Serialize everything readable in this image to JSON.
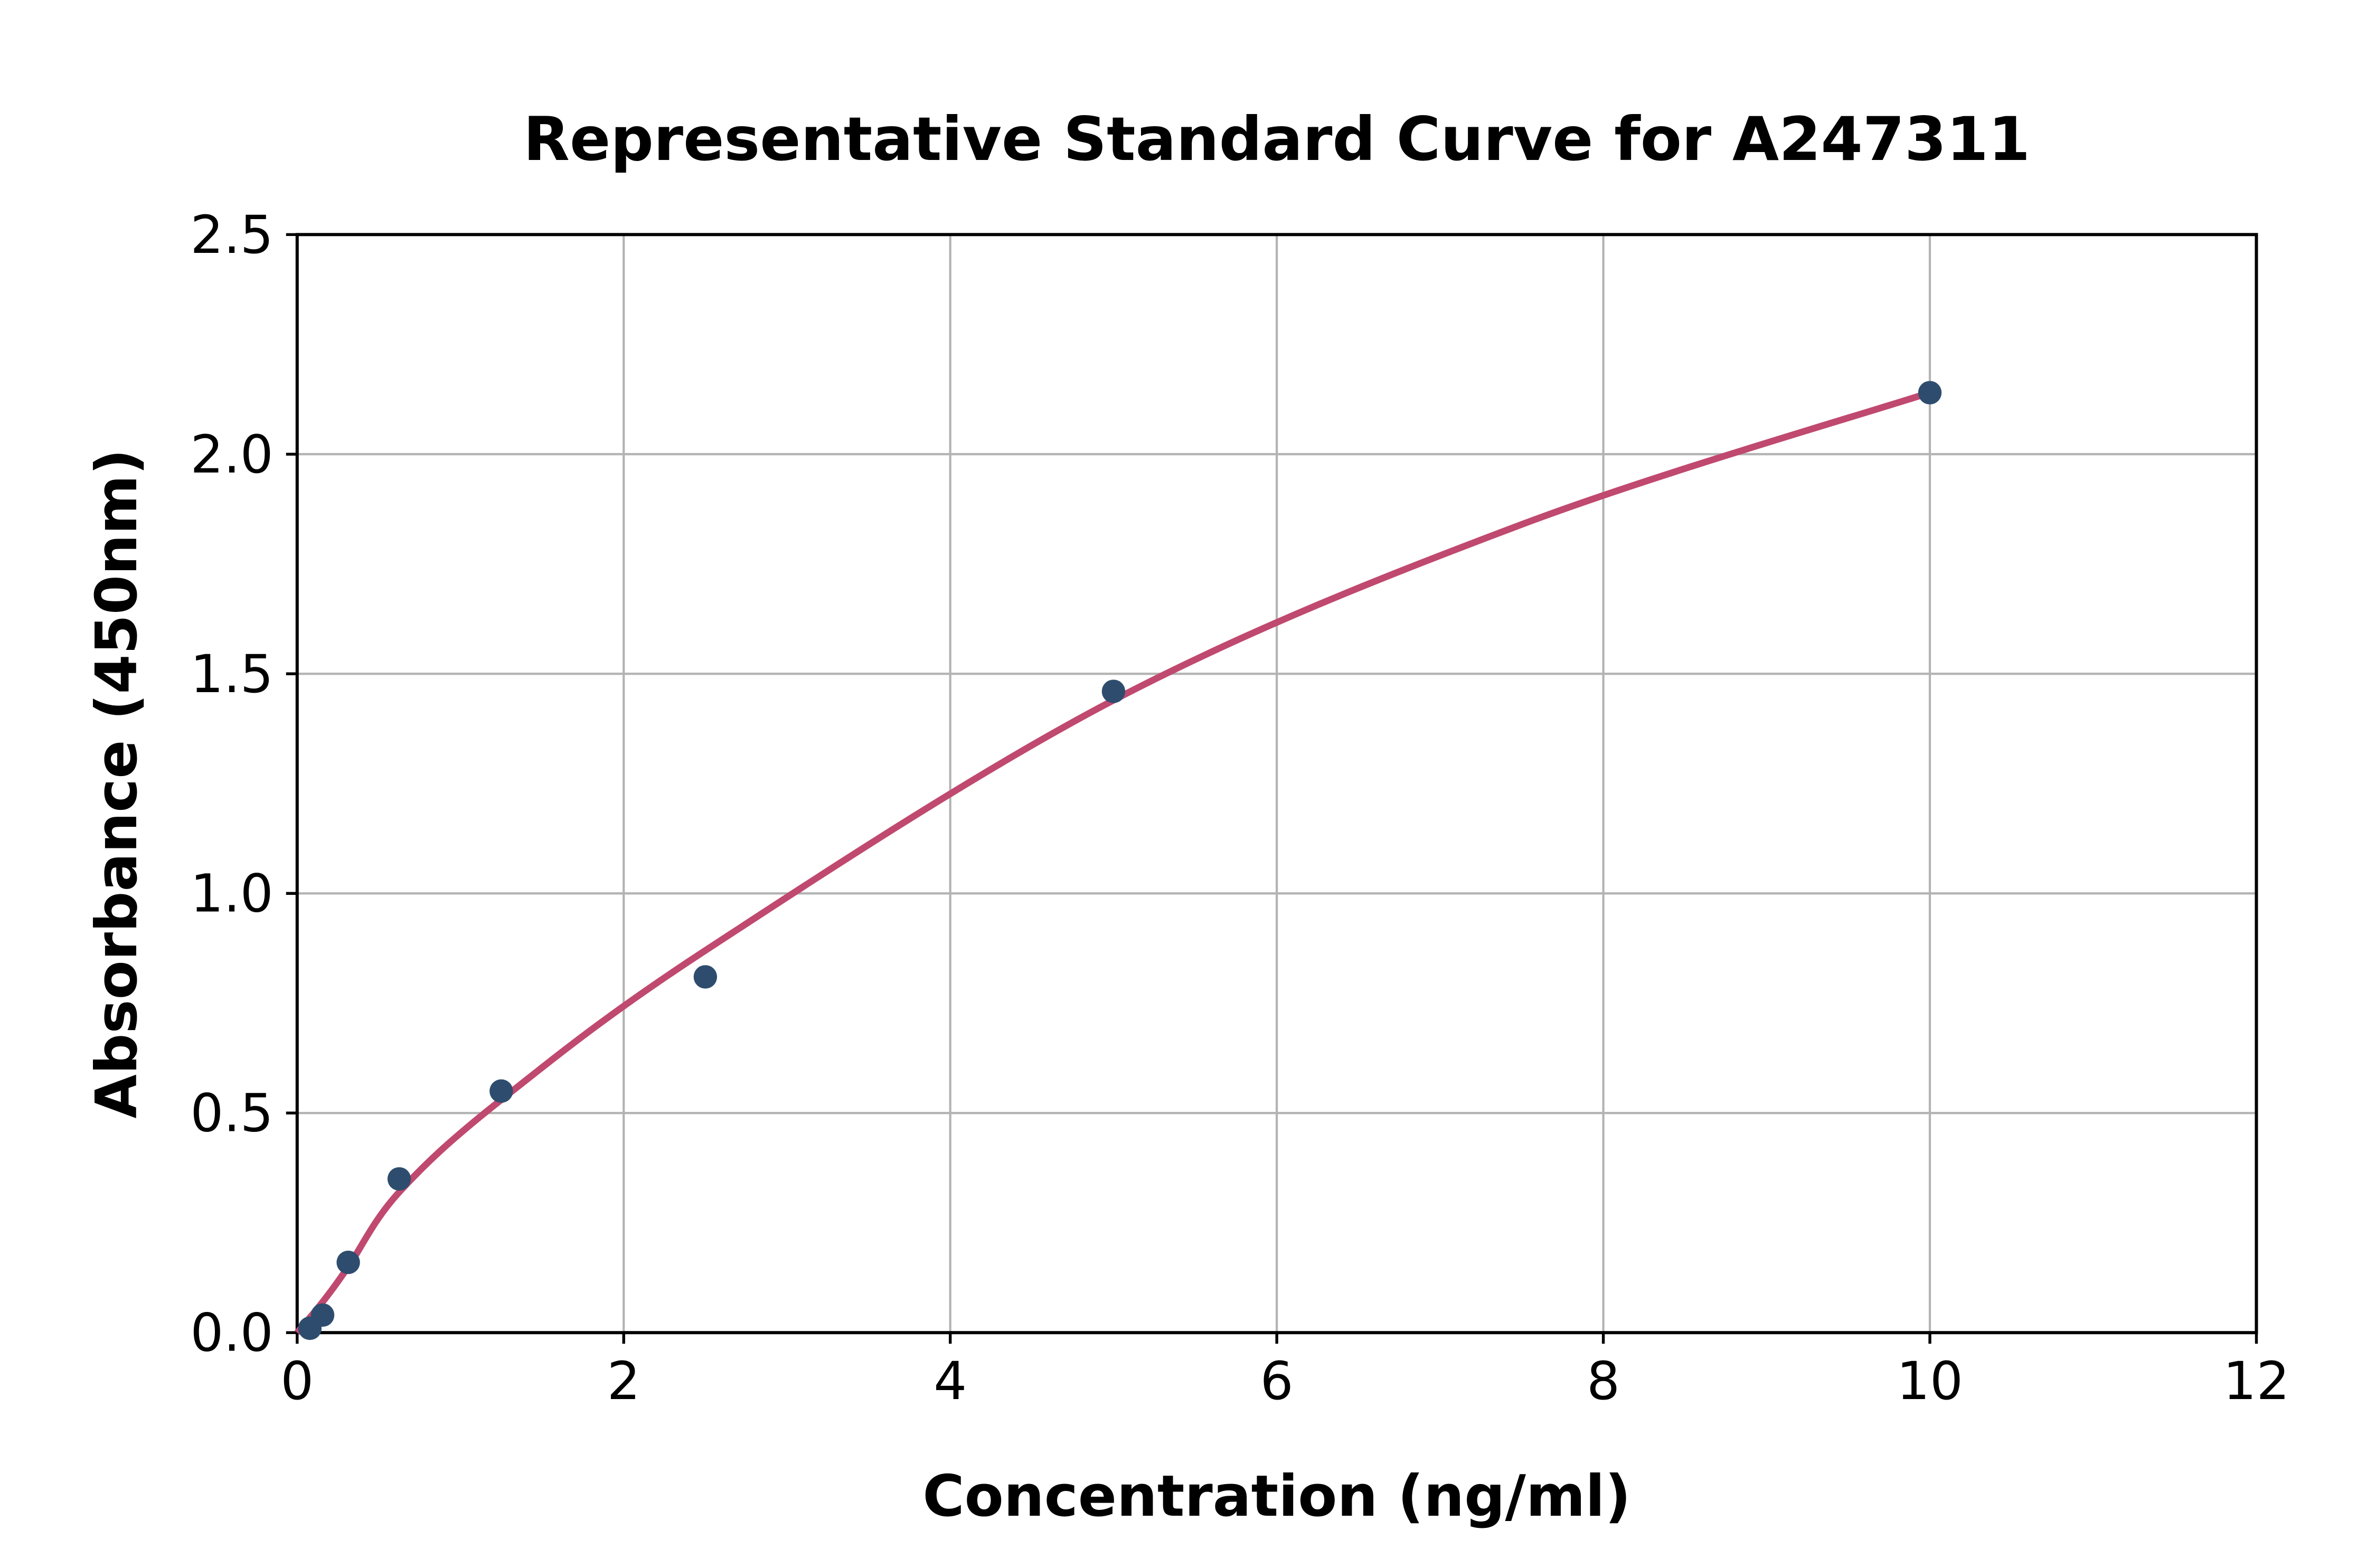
{
  "chart_data": {
    "type": "scatter",
    "title": "Representative Standard Curve for A247311",
    "xlabel": "Concentration (ng/ml)",
    "ylabel": "Absorbance (450nm)",
    "xlim": [
      0,
      12
    ],
    "ylim": [
      0,
      2.5
    ],
    "x_ticks": [
      0,
      2,
      4,
      6,
      8,
      10,
      12
    ],
    "x_tick_labels": [
      "0",
      "2",
      "4",
      "6",
      "8",
      "10",
      "12"
    ],
    "y_ticks": [
      0,
      0.5,
      1.0,
      1.5,
      2.0,
      2.5
    ],
    "y_tick_labels": [
      "0.0",
      "0.5",
      "1.0",
      "1.5",
      "2.0",
      "2.5"
    ],
    "grid": "on",
    "legend": "none",
    "series": [
      {
        "name": "standards",
        "marker": "circle",
        "points": [
          [
            0.078,
            0.01
          ],
          [
            0.156,
            0.04
          ],
          [
            0.313,
            0.16
          ],
          [
            0.625,
            0.35
          ],
          [
            1.25,
            0.55
          ],
          [
            2.5,
            0.81
          ],
          [
            5,
            1.46
          ],
          [
            10,
            2.14
          ]
        ]
      },
      {
        "name": "fit-curve",
        "marker": "none",
        "points": [
          [
            0,
            0
          ],
          [
            0.156,
            0.07
          ],
          [
            0.313,
            0.15
          ],
          [
            0.625,
            0.32
          ],
          [
            1.25,
            0.53
          ],
          [
            2.5,
            0.87
          ],
          [
            5,
            1.44
          ],
          [
            7.5,
            1.84
          ],
          [
            10,
            2.14
          ]
        ]
      }
    ],
    "colors": {
      "curve": "#c04970",
      "points": "#2e4d6e",
      "grid": "#b3b3b3",
      "spine": "#000000",
      "background": "#ffffff",
      "text": "#000000"
    }
  }
}
